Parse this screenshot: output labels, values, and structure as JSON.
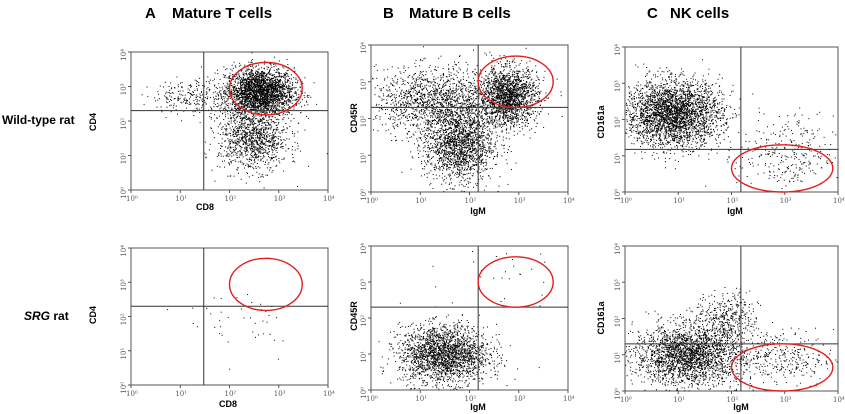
{
  "columns": [
    {
      "letter": "A",
      "title": "Mature T cells"
    },
    {
      "letter": "B",
      "title": "Mature B cells"
    },
    {
      "letter": "C",
      "title": "NK cells"
    }
  ],
  "rows": [
    {
      "label_prefix": "",
      "label_italic": "",
      "label_suffix": "Wild-type rat"
    },
    {
      "label_prefix": "",
      "label_italic": "SRG",
      "label_suffix": " rat"
    }
  ],
  "chart_data": [
    {
      "type": "scatter",
      "panel": "A",
      "row": "Wild-type rat",
      "xlabel": "CD8",
      "ylabel": "CD4",
      "xscale": "log",
      "yscale": "log",
      "xlim": [
        1,
        10000
      ],
      "ylim": [
        1,
        10000
      ],
      "x_ticks": [
        "10⁰",
        "10¹",
        "10²",
        "10³",
        "10⁴"
      ],
      "y_ticks": [
        "10⁰",
        "10¹",
        "10²",
        "10³",
        "10⁴"
      ],
      "quadrant_gate": {
        "x": 30,
        "y": 200
      },
      "gate_ellipse": {
        "x": [
          100,
          3000
        ],
        "y": [
          150,
          5000
        ]
      },
      "populations": [
        {
          "center": [
            400,
            700
          ],
          "spread": [
            0.35,
            0.35
          ],
          "n": 2600
        },
        {
          "center": [
            300,
            30
          ],
          "spread": [
            0.35,
            0.45
          ],
          "n": 1100
        },
        {
          "center": [
            20,
            500
          ],
          "spread": [
            0.45,
            0.25
          ],
          "n": 250
        }
      ]
    },
    {
      "type": "scatter",
      "panel": "B",
      "row": "Wild-type rat",
      "xlabel": "IgM",
      "ylabel": "CD45R",
      "xscale": "log",
      "yscale": "log",
      "xlim": [
        1,
        10000
      ],
      "ylim": [
        1,
        10000
      ],
      "x_ticks": [
        "10⁰",
        "10¹",
        "10²",
        "10³",
        "10⁴"
      ],
      "y_ticks": [
        "10⁰",
        "10¹",
        "10²",
        "10³",
        "10⁴"
      ],
      "quadrant_gate": {
        "x": 150,
        "y": 200
      },
      "gate_ellipse": {
        "x": [
          150,
          5000
        ],
        "y": [
          200,
          5000
        ]
      },
      "populations": [
        {
          "center": [
            600,
            400
          ],
          "spread": [
            0.3,
            0.4
          ],
          "n": 1800
        },
        {
          "center": [
            60,
            20
          ],
          "spread": [
            0.35,
            0.5
          ],
          "n": 1700
        },
        {
          "center": [
            20,
            300
          ],
          "spread": [
            0.6,
            0.45
          ],
          "n": 1400
        }
      ]
    },
    {
      "type": "scatter",
      "panel": "C",
      "row": "Wild-type rat",
      "xlabel": "IgM",
      "ylabel": "CD161a",
      "xscale": "log",
      "yscale": "log",
      "xlim": [
        1,
        10000
      ],
      "ylim": [
        1,
        10000
      ],
      "x_ticks": [
        "10⁰",
        "10¹",
        "10²",
        "10³",
        "10⁴"
      ],
      "y_ticks": [
        "10⁰",
        "10¹",
        "10²",
        "10³",
        "10⁴"
      ],
      "quadrant_gate": {
        "x": 150,
        "y": 15
      },
      "gate_ellipse": {
        "x": [
          100,
          8000
        ],
        "y": [
          1,
          20
        ]
      },
      "populations": [
        {
          "center": [
            8,
            150
          ],
          "spread": [
            0.45,
            0.45
          ],
          "n": 3000
        },
        {
          "center": [
            1000,
            10
          ],
          "spread": [
            0.45,
            0.55
          ],
          "n": 300
        }
      ]
    },
    {
      "type": "scatter",
      "panel": "A",
      "row": "SRG rat",
      "xlabel": "CD8",
      "ylabel": "CD4",
      "xscale": "log",
      "yscale": "log",
      "xlim": [
        1,
        10000
      ],
      "ylim": [
        1,
        10000
      ],
      "x_ticks": [
        "10⁰",
        "10¹",
        "10²",
        "10³",
        "10⁴"
      ],
      "y_ticks": [
        "10⁰",
        "10¹",
        "10²",
        "10³",
        "10⁴"
      ],
      "quadrant_gate": {
        "x": 30,
        "y": 200
      },
      "gate_ellipse": {
        "x": [
          100,
          3000
        ],
        "y": [
          150,
          5000
        ]
      },
      "populations": [
        {
          "center": [
            200,
            80
          ],
          "spread": [
            0.6,
            0.6
          ],
          "n": 40
        }
      ]
    },
    {
      "type": "scatter",
      "panel": "B",
      "row": "SRG rat",
      "xlabel": "IgM",
      "ylabel": "CD45R",
      "xscale": "log",
      "yscale": "log",
      "xlim": [
        1,
        10000
      ],
      "ylim": [
        1,
        10000
      ],
      "x_ticks": [
        "10⁰",
        "10¹",
        "10²",
        "10³",
        "10⁴"
      ],
      "y_ticks": [
        "10⁰",
        "10¹",
        "10²",
        "10³",
        "10⁴"
      ],
      "quadrant_gate": {
        "x": 150,
        "y": 200
      },
      "gate_ellipse": {
        "x": [
          150,
          5000
        ],
        "y": [
          200,
          5000
        ]
      },
      "populations": [
        {
          "center": [
            30,
            10
          ],
          "spread": [
            0.45,
            0.4
          ],
          "n": 2200
        },
        {
          "center": [
            500,
            2000
          ],
          "spread": [
            0.6,
            0.5
          ],
          "n": 25
        }
      ]
    },
    {
      "type": "scatter",
      "panel": "C",
      "row": "SRG rat",
      "xlabel": "IgM",
      "ylabel": "CD161a",
      "xscale": "log",
      "yscale": "log",
      "xlim": [
        1,
        10000
      ],
      "ylim": [
        1,
        10000
      ],
      "x_ticks": [
        "10⁰",
        "10¹",
        "10²",
        "10³",
        "10⁴"
      ],
      "y_ticks": [
        "10⁰",
        "10¹",
        "10²",
        "10³",
        "10⁴"
      ],
      "quadrant_gate": {
        "x": 150,
        "y": 20
      },
      "gate_ellipse": {
        "x": [
          100,
          8000
        ],
        "y": [
          1,
          20
        ]
      },
      "populations": [
        {
          "center": [
            15,
            10
          ],
          "spread": [
            0.5,
            0.4
          ],
          "n": 2400
        },
        {
          "center": [
            80,
            100
          ],
          "spread": [
            0.3,
            0.35
          ],
          "n": 400
        },
        {
          "center": [
            800,
            8
          ],
          "spread": [
            0.5,
            0.4
          ],
          "n": 350
        }
      ]
    }
  ],
  "colors": {
    "dot": "#000000",
    "gate_ellipse": "#e02020",
    "axis": "#555555"
  }
}
